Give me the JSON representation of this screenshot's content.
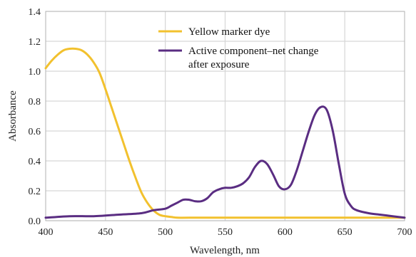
{
  "chart_data": {
    "type": "line",
    "title": "",
    "xlabel": "Wavelength, nm",
    "ylabel": "Absorbance",
    "xlim": [
      400,
      700
    ],
    "ylim": [
      0.0,
      1.4
    ],
    "x_ticks": [
      "400",
      "450",
      "500",
      "550",
      "600",
      "650",
      "700"
    ],
    "y_ticks": [
      "0.0",
      "0.2",
      "0.4",
      "0.6",
      "0.8",
      "1.0",
      "1.2",
      "1.4"
    ],
    "grid": true,
    "legend_position": "top-right",
    "series": [
      {
        "name": "Yellow marker dye",
        "color": "#f2c12e",
        "points": [
          [
            400,
            1.02
          ],
          [
            405,
            1.07
          ],
          [
            410,
            1.11
          ],
          [
            415,
            1.14
          ],
          [
            420,
            1.15
          ],
          [
            425,
            1.15
          ],
          [
            430,
            1.14
          ],
          [
            435,
            1.11
          ],
          [
            440,
            1.06
          ],
          [
            445,
            0.99
          ],
          [
            450,
            0.88
          ],
          [
            455,
            0.76
          ],
          [
            460,
            0.64
          ],
          [
            465,
            0.52
          ],
          [
            470,
            0.4
          ],
          [
            475,
            0.29
          ],
          [
            480,
            0.19
          ],
          [
            485,
            0.12
          ],
          [
            490,
            0.07
          ],
          [
            495,
            0.04
          ],
          [
            500,
            0.03
          ],
          [
            505,
            0.025
          ],
          [
            510,
            0.02
          ],
          [
            520,
            0.02
          ],
          [
            550,
            0.02
          ],
          [
            600,
            0.02
          ],
          [
            650,
            0.02
          ],
          [
            700,
            0.02
          ]
        ]
      },
      {
        "name": "Active component–net change after exposure",
        "color": "#5a2d82",
        "points": [
          [
            400,
            0.02
          ],
          [
            420,
            0.03
          ],
          [
            440,
            0.03
          ],
          [
            460,
            0.04
          ],
          [
            480,
            0.05
          ],
          [
            490,
            0.07
          ],
          [
            500,
            0.08
          ],
          [
            505,
            0.1
          ],
          [
            510,
            0.12
          ],
          [
            515,
            0.14
          ],
          [
            520,
            0.14
          ],
          [
            525,
            0.13
          ],
          [
            530,
            0.13
          ],
          [
            535,
            0.15
          ],
          [
            540,
            0.19
          ],
          [
            545,
            0.21
          ],
          [
            550,
            0.22
          ],
          [
            555,
            0.22
          ],
          [
            560,
            0.23
          ],
          [
            565,
            0.25
          ],
          [
            570,
            0.29
          ],
          [
            575,
            0.36
          ],
          [
            580,
            0.4
          ],
          [
            585,
            0.38
          ],
          [
            590,
            0.31
          ],
          [
            595,
            0.23
          ],
          [
            600,
            0.21
          ],
          [
            605,
            0.24
          ],
          [
            610,
            0.34
          ],
          [
            615,
            0.47
          ],
          [
            620,
            0.6
          ],
          [
            625,
            0.71
          ],
          [
            630,
            0.76
          ],
          [
            635,
            0.74
          ],
          [
            640,
            0.6
          ],
          [
            645,
            0.38
          ],
          [
            650,
            0.18
          ],
          [
            655,
            0.1
          ],
          [
            660,
            0.07
          ],
          [
            670,
            0.05
          ],
          [
            680,
            0.04
          ],
          [
            690,
            0.03
          ],
          [
            700,
            0.02
          ]
        ]
      }
    ]
  }
}
